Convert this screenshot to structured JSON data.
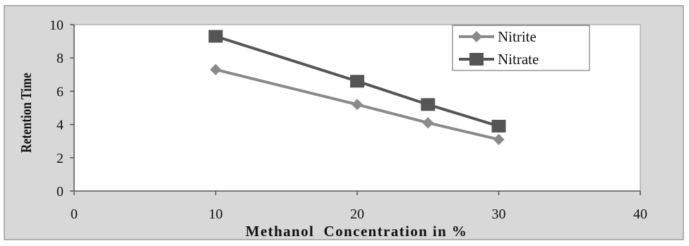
{
  "chart_data": {
    "type": "line",
    "xlabel": "Methanol  Concentration in %",
    "ylabel": "Retention Time",
    "xlim": [
      0,
      40
    ],
    "ylim": [
      0,
      10
    ],
    "x_ticks": [
      "0",
      "10",
      "20",
      "30",
      "40"
    ],
    "y_ticks": [
      "0",
      "2",
      "4",
      "6",
      "8",
      "10"
    ],
    "grid": "none",
    "legend_position": "top-right",
    "series": [
      {
        "name": "Nitrite",
        "marker": "diamond",
        "color": "#8a8a8a",
        "points": [
          {
            "x": 10,
            "y": 7.3
          },
          {
            "x": 20,
            "y": 5.2
          },
          {
            "x": 25,
            "y": 4.1
          },
          {
            "x": 30,
            "y": 3.1
          }
        ]
      },
      {
        "name": "Nitrate",
        "marker": "square",
        "color": "#555555",
        "points": [
          {
            "x": 10,
            "y": 9.3
          },
          {
            "x": 20,
            "y": 6.6
          },
          {
            "x": 25,
            "y": 5.2
          },
          {
            "x": 30,
            "y": 3.9
          }
        ]
      }
    ]
  },
  "colors": {
    "outer_background": "#d8d8d8",
    "plot_background": "#ffffff",
    "axis": "#555555",
    "text": "#111111"
  }
}
